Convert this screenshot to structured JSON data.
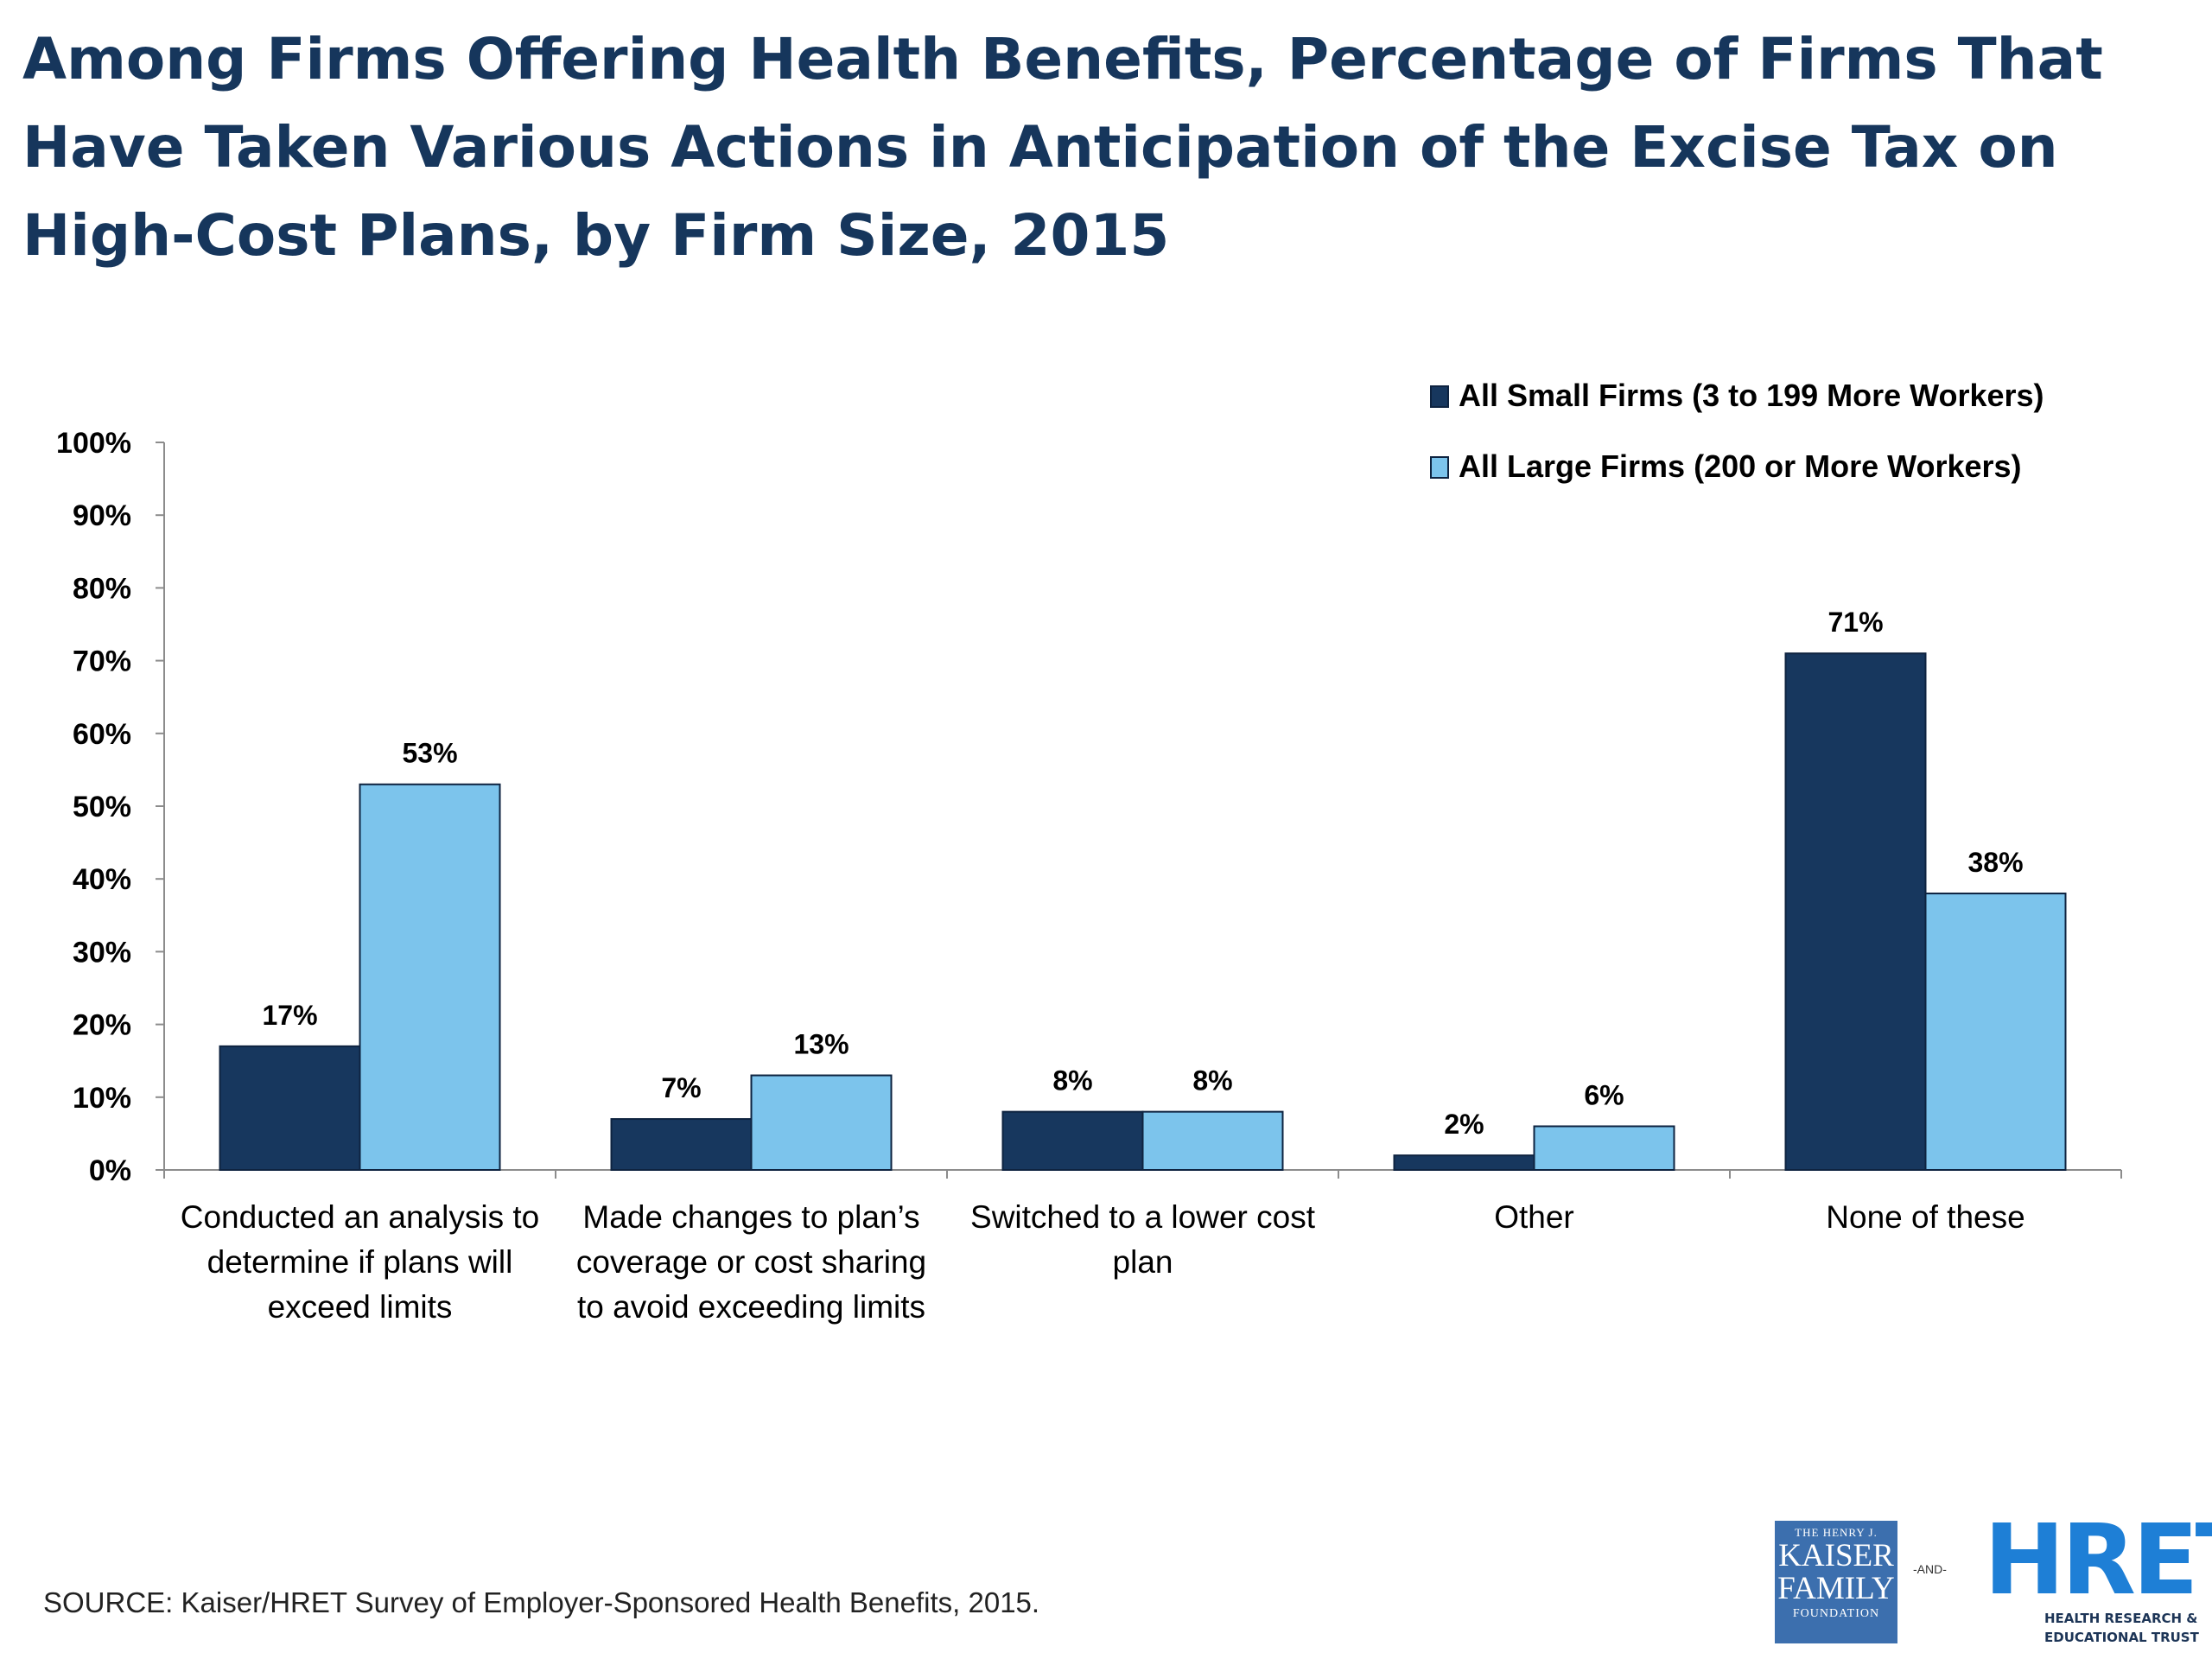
{
  "title": "Among Firms Offering Health Benefits, Percentage of Firms That Have Taken Various Actions in Anticipation of the Excise Tax on High-Cost Plans, by Firm Size, 2015",
  "source": "SOURCE: Kaiser/HRET Survey of Employer-Sponsored Health Benefits, 2015.",
  "logos": {
    "kff_top": "THE HENRY J.",
    "kff_line1": "KAISER",
    "kff_line2": "FAMILY",
    "kff_bottom": "FOUNDATION",
    "and": "-AND-",
    "hret": "HRET",
    "hret_sub": "HEALTH RESEARCH & EDUCATIONAL TRUST"
  },
  "chart_data": {
    "type": "bar",
    "categories": [
      [
        "Conducted an analysis to",
        "determine if plans will",
        "exceed limits"
      ],
      [
        "Made changes to plan’s",
        "coverage or cost sharing",
        "to avoid exceeding limits"
      ],
      [
        "Switched to a lower cost",
        "plan"
      ],
      [
        "Other"
      ],
      [
        "None of these"
      ]
    ],
    "series": [
      {
        "name": "All Small Firms (3 to 199 More Workers)",
        "values": [
          17,
          7,
          8,
          2,
          71
        ],
        "labels": [
          "17%",
          "7%",
          "8%",
          "2%",
          "71%"
        ],
        "color": "#17375e"
      },
      {
        "name": "All Large Firms (200 or More Workers)",
        "values": [
          53,
          13,
          8,
          6,
          38
        ],
        "labels": [
          "53%",
          "13%",
          "8%",
          "6%",
          "38%"
        ],
        "color": "#7cc4ec"
      }
    ],
    "ylim": [
      0,
      100
    ],
    "yticks": [
      "0%",
      "10%",
      "20%",
      "30%",
      "40%",
      "50%",
      "60%",
      "70%",
      "80%",
      "90%",
      "100%"
    ],
    "grid": false,
    "legend_position": "top-right",
    "xlabel": "",
    "ylabel": ""
  }
}
